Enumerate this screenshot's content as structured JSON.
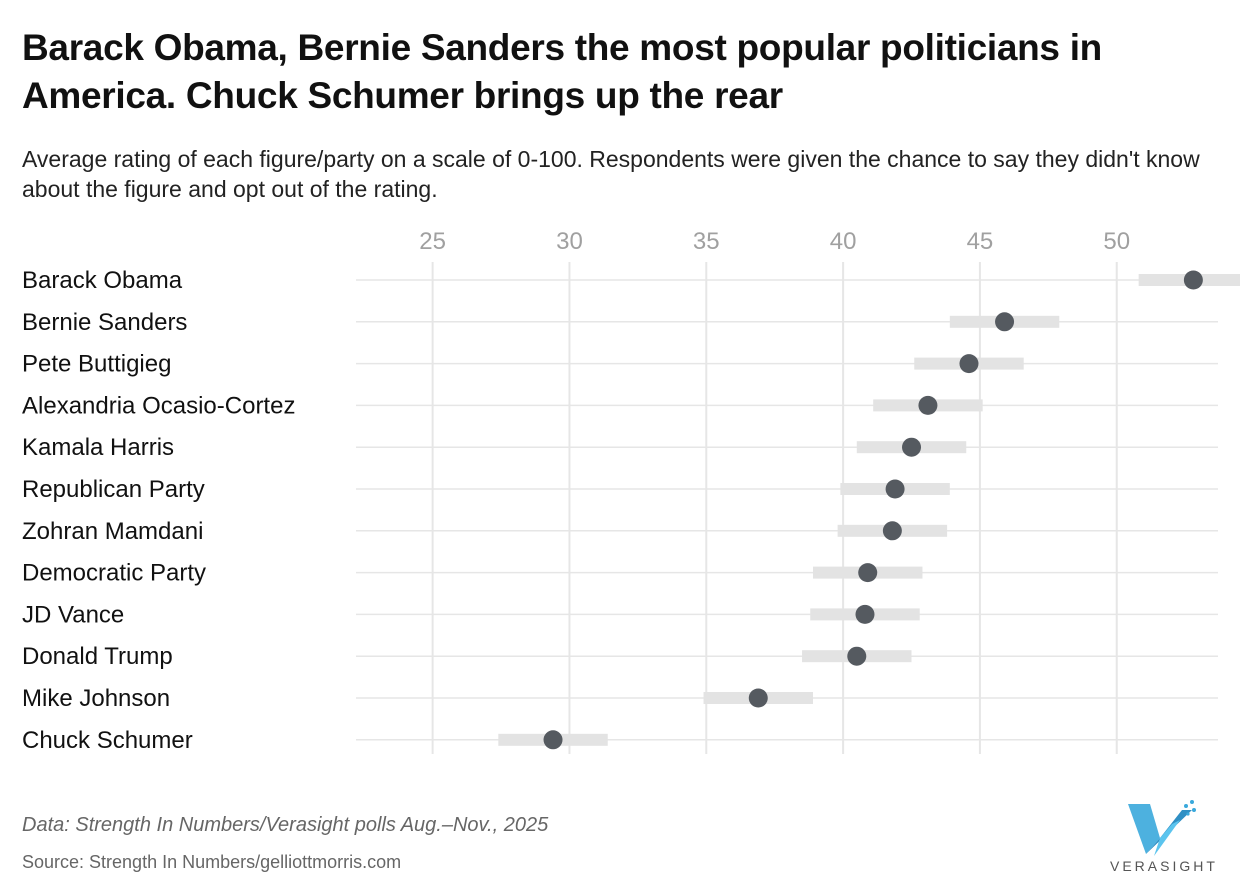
{
  "title": "Barack Obama, Bernie Sanders the most popular politicians in America. Chuck Schumer brings up the rear",
  "subtitle": "Average rating of each figure/party on a scale of 0-100. Respondents were given the chance to say they didn't know about the figure and opt out of the rating.",
  "note": "Data: Strength In Numbers/Verasight polls Aug.–Nov., 2025",
  "source": "Source: Strength In Numbers/gelliottmorris.com",
  "logo_text": "VERASIGHT",
  "colors": {
    "point": "#555a60",
    "range": "#e3e3e3",
    "grid": "#e6e6e6",
    "tick": "#a0a0a0",
    "logo": "#3aa9dc"
  },
  "chart_data": {
    "type": "dot",
    "xlim": [
      22.2,
      53.7
    ],
    "xticks": [
      25,
      30,
      35,
      40,
      45,
      50
    ],
    "xlabel": "",
    "ylabel": "",
    "points": [
      {
        "name": "Barack Obama",
        "value": 52.8,
        "low": 50.8,
        "high": 54.8
      },
      {
        "name": "Bernie Sanders",
        "value": 45.9,
        "low": 43.9,
        "high": 47.9
      },
      {
        "name": "Pete Buttigieg",
        "value": 44.6,
        "low": 42.6,
        "high": 46.6
      },
      {
        "name": "Alexandria Ocasio-Cortez",
        "value": 43.1,
        "low": 41.1,
        "high": 45.1
      },
      {
        "name": "Kamala Harris",
        "value": 42.5,
        "low": 40.5,
        "high": 44.5
      },
      {
        "name": "Republican Party",
        "value": 41.9,
        "low": 39.9,
        "high": 43.9
      },
      {
        "name": "Zohran Mamdani",
        "value": 41.8,
        "low": 39.8,
        "high": 43.8
      },
      {
        "name": "Democratic Party",
        "value": 40.9,
        "low": 38.9,
        "high": 42.9
      },
      {
        "name": "JD Vance",
        "value": 40.8,
        "low": 38.8,
        "high": 42.8
      },
      {
        "name": "Donald Trump",
        "value": 40.5,
        "low": 38.5,
        "high": 42.5
      },
      {
        "name": "Mike Johnson",
        "value": 36.9,
        "low": 34.9,
        "high": 38.9
      },
      {
        "name": "Chuck Schumer",
        "value": 29.4,
        "low": 27.4,
        "high": 31.4
      }
    ]
  }
}
